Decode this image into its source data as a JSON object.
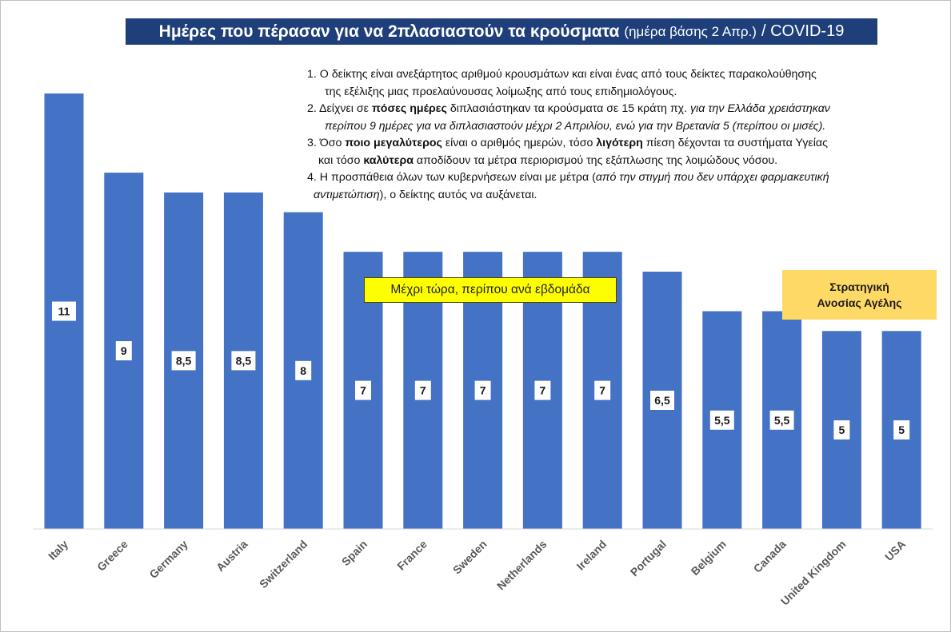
{
  "title": {
    "main": "Ημέρες που πέρασαν για να 2πλασιαστούν τα κρούσματα",
    "sub": "(ημέρα βάσης 2 Απρ.)",
    "tail": "/ COVID-19"
  },
  "notes": [
    {
      "parts": [
        {
          "t": "1. Ο δείκτης είναι ανεξάρτητος αριθμού κρουσμάτων και είναι ένας από τους δείκτες παρακολούθησης"
        },
        {
          "t": "της εξέλιξης μιας προελαύνουσας λοίμωξης από τους επιδημιολόγους.",
          "cls": "cont",
          "br": true
        }
      ]
    },
    {
      "parts": [
        {
          "t": "2. Δείχνει σε "
        },
        {
          "t": "πόσες ημέρες",
          "b": true
        },
        {
          "t": " διπλασιάστηκαν τα κρούσματα σε 15 κράτη πχ. "
        },
        {
          "t": "για την Ελλάδα χρειάστηκαν",
          "i": true
        },
        {
          "t": "περίπου 9 ημέρες για να διπλασιαστούν μέχρι 2 Απριλίου, ενώ για την Βρετανία 5 (περίπου οι μισές).",
          "i": true,
          "cls": "cont",
          "br": true
        }
      ]
    },
    {
      "parts": [
        {
          "t": "3. Όσο "
        },
        {
          "t": "ποιο μεγαλύτερος",
          "b": true
        },
        {
          "t": " είναι ο αριθμός ημερών, τόσο "
        },
        {
          "t": "λιγότερη",
          "b": true
        },
        {
          "t": " πίεση δέχονται τα συστήματα Υγείας"
        },
        {
          "t": "και τόσο ",
          "cls": "cont2",
          "br": true,
          "open": true
        },
        {
          "t": "καλύτερα",
          "b": true,
          "inside": true
        },
        {
          "t": " αποδίδουν τα μέτρα περιορισμού της εξάπλωσης της λοιμώδους νόσου.",
          "inside": true,
          "close": true
        }
      ]
    },
    {
      "parts": [
        {
          "t": "4. Η προσπάθεια όλων των κυβερνήσεων είναι με μέτρα ("
        },
        {
          "t": "από την στιγμή που δεν υπάρχει φαρμακευτική",
          "i": true
        },
        {
          "t": "αντιμετώπιση",
          "i": true,
          "cls": "cont3",
          "br": true,
          "open": true
        },
        {
          "t": "), ο δείκτης αυτός να αυξάνεται.",
          "inside": true,
          "close": true
        }
      ]
    }
  ],
  "callouts": {
    "weekly": "Μέχρι τώρα, περίπου ανά εβδομάδα",
    "strategy_line1": "Στρατηγική",
    "strategy_line2": "Ανοσίας Αγέλης"
  },
  "chart_data": {
    "type": "bar",
    "title": "Ημέρες που πέρασαν για να 2πλασιαστούν τα κρούσματα (ημέρα βάσης 2 Απρ.) / COVID-19",
    "categories": [
      "Italy",
      "Greece",
      "Germany",
      "Austria",
      "Switzerland",
      "Spain",
      "France",
      "Sweden",
      "Netherlands",
      "Ireland",
      "Portugal",
      "Belgium",
      "Canada",
      "United Kingdom",
      "USA"
    ],
    "values": [
      11,
      9,
      8.5,
      8.5,
      8,
      7,
      7,
      7,
      7,
      7,
      6.5,
      5.5,
      5.5,
      5,
      5
    ],
    "value_labels": [
      "11",
      "9",
      "8,5",
      "8,5",
      "8",
      "7",
      "7",
      "7",
      "7",
      "7",
      "6,5",
      "5,5",
      "5,5",
      "5",
      "5"
    ],
    "ylim": [
      0,
      11
    ],
    "grid": false,
    "legend": "none",
    "xlabel": "",
    "ylabel": "",
    "colors": {
      "bar": "#4472c4",
      "label_bg": "#ffffff",
      "label_text": "#1a1a1a",
      "axis": "#d9d9d9",
      "tick_text": "#595959"
    }
  }
}
